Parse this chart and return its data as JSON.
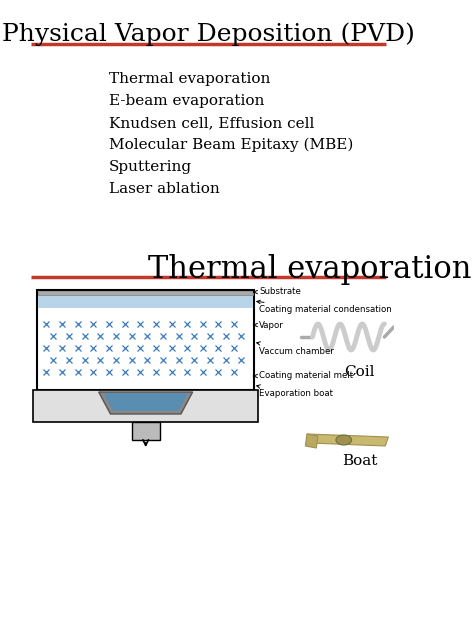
{
  "title": "Physical Vapor Deposition (PVD)",
  "title_fontsize": 18,
  "title_font": "serif",
  "subtitle": "Thermal evaporation",
  "subtitle_fontsize": 22,
  "subtitle_font": "serif",
  "bullet_items": [
    "Thermal evaporation",
    "E-beam evaporation",
    "Knudsen cell, Effusion cell",
    "Molecular Beam Epitaxy (MBE)",
    "Sputtering",
    "Laser ablation"
  ],
  "bullet_fontsize": 11,
  "divider_color": "#c0392b",
  "bg_color": "#ffffff",
  "text_color": "#000000",
  "diagram_labels": [
    "Substrate",
    "Coating material condensation",
    "Vapor",
    "Vaccum chamber",
    "Coating material melt",
    "Evaporation boat"
  ],
  "coil_label": "Coil",
  "boat_label": "Boat"
}
